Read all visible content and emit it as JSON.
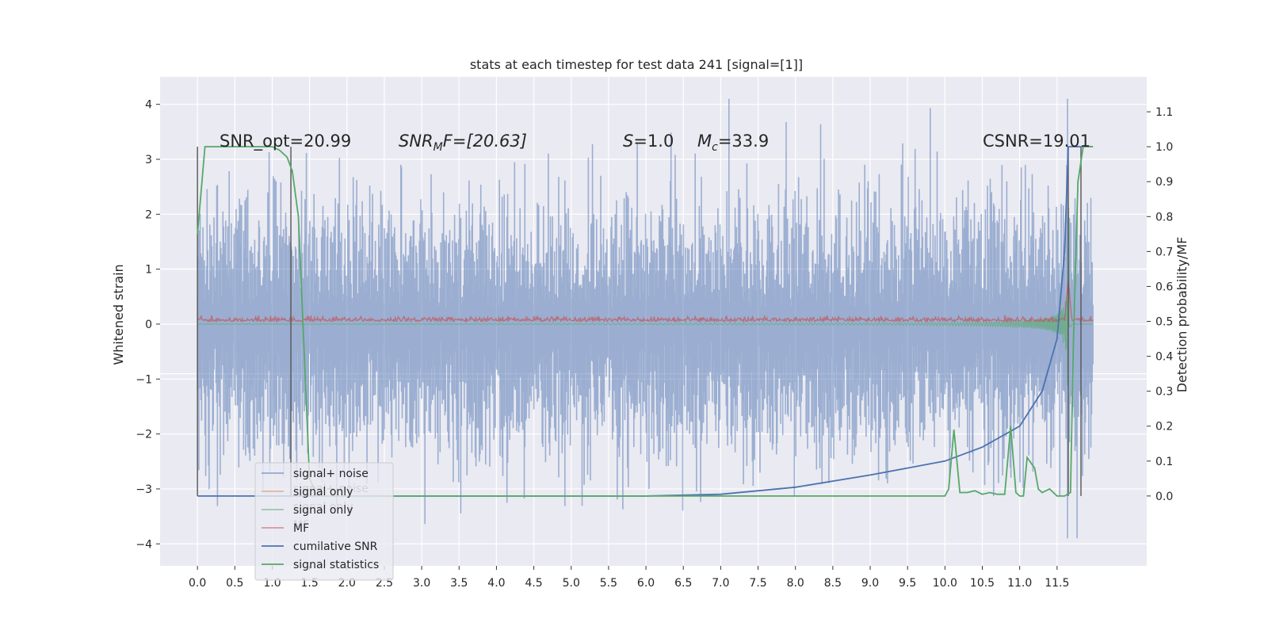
{
  "chart_data": {
    "type": "line",
    "title": "stats at each timestep for test data 241 [signal=[1]]",
    "ylabel_left": "Whitened strain",
    "ylabel_right": "Detection probability/MF",
    "x_ticks": [
      "0.0",
      "0.5",
      "1.0",
      "1.5",
      "2.0",
      "2.5",
      "3.0",
      "3.5",
      "4.0",
      "4.5",
      "5.0",
      "5.5",
      "6.0",
      "6.5",
      "7.0",
      "7.5",
      "8.0",
      "8.5",
      "9.0",
      "9.5",
      "10.0",
      "10.5",
      "11.0",
      "11.5"
    ],
    "xlim": [
      -0.5,
      12.7
    ],
    "y_left_ticks": [
      "4",
      "3",
      "2",
      "1",
      "0",
      "−1",
      "−2",
      "−3",
      "−4"
    ],
    "ylim_left": [
      -4.4,
      4.5
    ],
    "y_right_ticks": [
      "1.1",
      "1.0",
      "0.9",
      "0.8",
      "0.7",
      "0.6",
      "0.5",
      "0.4",
      "0.3",
      "0.2",
      "0.1",
      "0.0"
    ],
    "ylim_right": [
      -0.2,
      1.2
    ],
    "grid": true,
    "legend_position": "lower-left",
    "annotations": {
      "snr_opt": "SNR_opt=20.99",
      "snr_mf_math": "SNR",
      "snr_mf_sub": "M",
      "snr_mf_rest": "F=[20.63]",
      "s_math": "S",
      "s_rest": "=1.0",
      "mc_math": "M",
      "mc_sub": "c",
      "mc_rest": "=33.9",
      "csnr": "CSNR=19.01"
    },
    "series": [
      {
        "name": "signal+ noise",
        "color": "#4c72b0",
        "axis": "left",
        "description_values": {
          "x_range": [
            0.0,
            11.98
          ],
          "y_range": [
            -3.9,
            4.1
          ]
        }
      },
      {
        "name": "signal only",
        "color": "#dd8452",
        "axis": "left"
      },
      {
        "name": "signal only",
        "color": "#55a868",
        "axis": "left",
        "points_note": "chirp amplitude growing toward merger near x=11.65"
      },
      {
        "name": "MF",
        "color": "#c44e52",
        "axis": "right",
        "baseline": 0.5
      },
      {
        "name": "cumilative SNR",
        "color": "#4c72b0",
        "axis": "right",
        "x": [
          0.0,
          6.0,
          7.0,
          8.0,
          9.0,
          10.0,
          10.5,
          11.0,
          11.3,
          11.5,
          11.6,
          11.65,
          11.7,
          11.98
        ],
        "y": [
          0.0,
          0.0,
          0.005,
          0.025,
          0.06,
          0.1,
          0.14,
          0.2,
          0.3,
          0.45,
          0.7,
          1.0,
          1.0,
          1.0
        ]
      },
      {
        "name": "signal statistics",
        "color": "#55a868",
        "axis": "right",
        "x": [
          0.0,
          0.1,
          1.0,
          1.1,
          1.2,
          1.27,
          1.35,
          1.5,
          1.6,
          10.0,
          10.05,
          10.12,
          10.2,
          10.3,
          10.4,
          10.5,
          10.6,
          10.7,
          10.8,
          10.88,
          10.95,
          11.0,
          11.05,
          11.1,
          11.2,
          11.25,
          11.3,
          11.4,
          11.5,
          11.6,
          11.68,
          11.72,
          11.78,
          11.85,
          11.98
        ],
        "y": [
          0.75,
          1.0,
          1.0,
          0.99,
          0.97,
          0.93,
          0.8,
          0.05,
          0.0,
          0.0,
          0.02,
          0.19,
          0.01,
          0.01,
          0.015,
          0.005,
          0.01,
          0.005,
          0.005,
          0.2,
          0.01,
          0.0,
          0.0,
          0.11,
          0.08,
          0.02,
          0.01,
          0.02,
          0.0,
          0.0,
          0.01,
          0.45,
          0.9,
          1.0,
          1.0
        ]
      },
      {
        "name": "window markers",
        "color": "#555555",
        "axis": "right",
        "segments_x": [
          0.0,
          1.25,
          11.65,
          11.82
        ]
      }
    ],
    "legend": [
      {
        "label": "signal+ noise",
        "color": "#4c72b0",
        "faded": true
      },
      {
        "label": "signal only",
        "color": "#dd8452",
        "faded": true
      },
      {
        "label": "signal only",
        "color": "#55a868",
        "faded": true
      },
      {
        "label": "MF",
        "color": "#c44e52",
        "faded": true
      },
      {
        "label": "cumilative SNR",
        "color": "#4c72b0",
        "faded": false
      },
      {
        "label": "signal statistics",
        "color": "#55a868",
        "faded": false
      }
    ],
    "legend_ghost_labels": [
      "signal+ noise",
      "signal only",
      "MF"
    ],
    "colors": {
      "background": "#eaeaf2",
      "grid": "#ffffff"
    }
  }
}
